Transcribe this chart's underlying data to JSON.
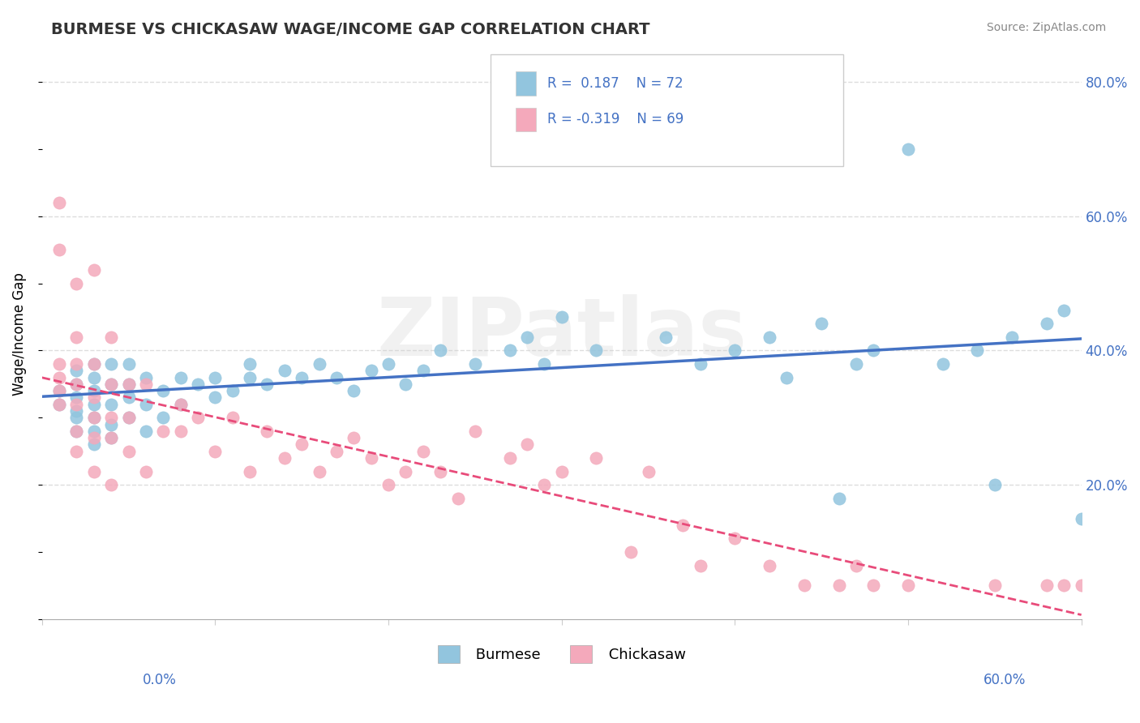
{
  "title": "BURMESE VS CHICKASAW WAGE/INCOME GAP CORRELATION CHART",
  "source": "Source: ZipAtlas.com",
  "ylabel": "Wage/Income Gap",
  "right_yticks": [
    "20.0%",
    "40.0%",
    "60.0%",
    "80.0%"
  ],
  "right_ytick_vals": [
    0.2,
    0.4,
    0.6,
    0.8
  ],
  "xmin": 0.0,
  "xmax": 0.6,
  "ymin": 0.0,
  "ymax": 0.85,
  "burmese_R": 0.187,
  "burmese_N": 72,
  "chickasaw_R": -0.319,
  "chickasaw_N": 69,
  "burmese_color": "#92C5DE",
  "chickasaw_color": "#F4A9BB",
  "burmese_line_color": "#4472C4",
  "chickasaw_line_color": "#E84B7A",
  "watermark": "ZIPatlas",
  "burmese_x": [
    0.01,
    0.01,
    0.02,
    0.02,
    0.02,
    0.02,
    0.02,
    0.02,
    0.03,
    0.03,
    0.03,
    0.03,
    0.03,
    0.03,
    0.03,
    0.04,
    0.04,
    0.04,
    0.04,
    0.04,
    0.05,
    0.05,
    0.05,
    0.05,
    0.06,
    0.06,
    0.06,
    0.07,
    0.07,
    0.08,
    0.08,
    0.09,
    0.1,
    0.1,
    0.11,
    0.12,
    0.12,
    0.13,
    0.14,
    0.15,
    0.16,
    0.17,
    0.18,
    0.19,
    0.2,
    0.21,
    0.22,
    0.23,
    0.25,
    0.27,
    0.28,
    0.29,
    0.3,
    0.32,
    0.35,
    0.36,
    0.38,
    0.4,
    0.42,
    0.43,
    0.45,
    0.46,
    0.47,
    0.48,
    0.5,
    0.52,
    0.54,
    0.55,
    0.56,
    0.58,
    0.59,
    0.6
  ],
  "burmese_y": [
    0.32,
    0.34,
    0.28,
    0.3,
    0.31,
    0.33,
    0.35,
    0.37,
    0.26,
    0.28,
    0.3,
    0.32,
    0.34,
    0.36,
    0.38,
    0.27,
    0.29,
    0.32,
    0.35,
    0.38,
    0.3,
    0.33,
    0.35,
    0.38,
    0.28,
    0.32,
    0.36,
    0.3,
    0.34,
    0.32,
    0.36,
    0.35,
    0.33,
    0.36,
    0.34,
    0.36,
    0.38,
    0.35,
    0.37,
    0.36,
    0.38,
    0.36,
    0.34,
    0.37,
    0.38,
    0.35,
    0.37,
    0.4,
    0.38,
    0.4,
    0.42,
    0.38,
    0.45,
    0.4,
    0.7,
    0.42,
    0.38,
    0.4,
    0.42,
    0.36,
    0.44,
    0.18,
    0.38,
    0.4,
    0.7,
    0.38,
    0.4,
    0.2,
    0.42,
    0.44,
    0.46,
    0.15
  ],
  "chickasaw_x": [
    0.01,
    0.01,
    0.01,
    0.01,
    0.01,
    0.01,
    0.02,
    0.02,
    0.02,
    0.02,
    0.02,
    0.02,
    0.02,
    0.03,
    0.03,
    0.03,
    0.03,
    0.03,
    0.03,
    0.04,
    0.04,
    0.04,
    0.04,
    0.04,
    0.05,
    0.05,
    0.05,
    0.06,
    0.06,
    0.07,
    0.08,
    0.08,
    0.09,
    0.1,
    0.11,
    0.12,
    0.13,
    0.14,
    0.15,
    0.16,
    0.17,
    0.18,
    0.19,
    0.2,
    0.21,
    0.22,
    0.23,
    0.24,
    0.25,
    0.27,
    0.28,
    0.29,
    0.3,
    0.32,
    0.34,
    0.35,
    0.37,
    0.38,
    0.4,
    0.42,
    0.44,
    0.46,
    0.47,
    0.48,
    0.5,
    0.55,
    0.58,
    0.59,
    0.6
  ],
  "chickasaw_y": [
    0.32,
    0.34,
    0.36,
    0.38,
    0.55,
    0.62,
    0.25,
    0.28,
    0.32,
    0.35,
    0.38,
    0.42,
    0.5,
    0.22,
    0.27,
    0.3,
    0.33,
    0.38,
    0.52,
    0.2,
    0.27,
    0.3,
    0.35,
    0.42,
    0.25,
    0.3,
    0.35,
    0.22,
    0.35,
    0.28,
    0.28,
    0.32,
    0.3,
    0.25,
    0.3,
    0.22,
    0.28,
    0.24,
    0.26,
    0.22,
    0.25,
    0.27,
    0.24,
    0.2,
    0.22,
    0.25,
    0.22,
    0.18,
    0.28,
    0.24,
    0.26,
    0.2,
    0.22,
    0.24,
    0.1,
    0.22,
    0.14,
    0.08,
    0.12,
    0.08,
    0.05,
    0.05,
    0.08,
    0.05,
    0.05,
    0.05,
    0.05,
    0.05,
    0.05
  ]
}
